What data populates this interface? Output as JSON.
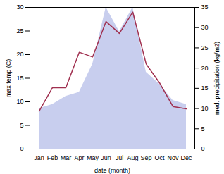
{
  "chart_data": {
    "type": "line",
    "xlabel": "date (month)",
    "ylabel": "max temp (C)",
    "y2label": "med. precipitation (kg/m2)",
    "categories": [
      "Jan",
      "Feb",
      "Mar",
      "Apr",
      "May",
      "Jun",
      "Jul",
      "Aug",
      "Sep",
      "Oct",
      "Nov",
      "Dec"
    ],
    "series": [
      {
        "type": "area",
        "axis": "y2",
        "color": "#c8ceee",
        "values": [
          10.0,
          11.0,
          13.0,
          14.0,
          21.0,
          35.0,
          29.0,
          35.0,
          19.0,
          16.0,
          12.0,
          11.0
        ]
      },
      {
        "type": "line",
        "color": "#a03050",
        "values": [
          8.0,
          13.0,
          13.0,
          20.5,
          19.5,
          27.0,
          24.5,
          29.0,
          18.0,
          14.0,
          9.0,
          8.5
        ]
      }
    ],
    "ylim": [
      0,
      30
    ],
    "yticks": [
      0,
      5,
      10,
      15,
      20,
      25,
      30
    ],
    "y2lim": [
      0,
      35
    ],
    "y2ticks": [
      0,
      5,
      10,
      15,
      20,
      25,
      30,
      35
    ]
  }
}
